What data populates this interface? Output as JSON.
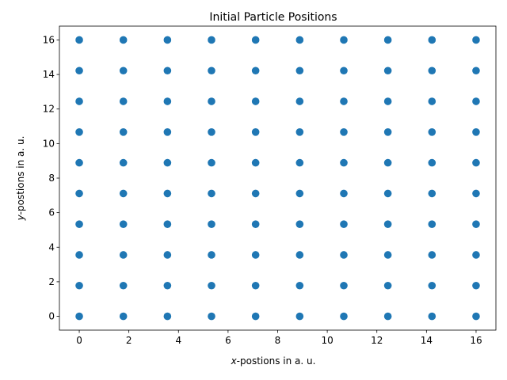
{
  "chart_data": {
    "type": "scatter",
    "title": "Initial Particle Positions",
    "xlabel_italic": "x",
    "xlabel_rest": "-postions in a. u.",
    "ylabel_italic": "y",
    "ylabel_rest": "-postions in a. u.",
    "xlim": [
      -0.8,
      16.8
    ],
    "ylim": [
      -0.8,
      16.8
    ],
    "xticks": [
      0,
      2,
      4,
      6,
      8,
      10,
      12,
      14,
      16
    ],
    "yticks": [
      0,
      2,
      4,
      6,
      8,
      10,
      12,
      14,
      16
    ],
    "grid": false,
    "marker_color": "#1f77b4",
    "grid_values": [
      0,
      1.778,
      3.556,
      5.333,
      7.111,
      8.889,
      10.667,
      12.444,
      14.222,
      16
    ]
  }
}
